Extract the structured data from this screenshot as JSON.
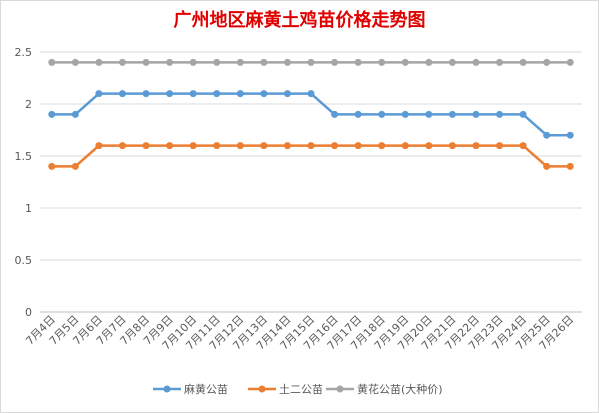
{
  "chart_data": {
    "type": "line",
    "title": "广州地区麻黄土鸡苗价格走势图",
    "xlabel": "",
    "ylabel": "",
    "ylim": [
      0,
      2.5
    ],
    "yticks": [
      "0",
      "0.5",
      "1",
      "1.5",
      "2",
      "2.5"
    ],
    "grid": true,
    "legend_position": "bottom",
    "categories": [
      "7月4日",
      "7月5日",
      "7月6日",
      "7月7日",
      "7月8日",
      "7月9日",
      "7月10日",
      "7月11日",
      "7月12日",
      "7月13日",
      "7月14日",
      "7月15日",
      "7月16日",
      "7月17日",
      "7月18日",
      "7月19日",
      "7月20日",
      "7月21日",
      "7月22日",
      "7月23日",
      "7月24日",
      "7月25日",
      "7月26日"
    ],
    "series": [
      {
        "name": "麻黄公苗",
        "color": "#5b9bd5",
        "values": [
          1.9,
          1.9,
          2.1,
          2.1,
          2.1,
          2.1,
          2.1,
          2.1,
          2.1,
          2.1,
          2.1,
          2.1,
          1.9,
          1.9,
          1.9,
          1.9,
          1.9,
          1.9,
          1.9,
          1.9,
          1.9,
          1.7,
          1.7
        ]
      },
      {
        "name": "土二公苗",
        "color": "#ed7d31",
        "values": [
          1.4,
          1.4,
          1.6,
          1.6,
          1.6,
          1.6,
          1.6,
          1.6,
          1.6,
          1.6,
          1.6,
          1.6,
          1.6,
          1.6,
          1.6,
          1.6,
          1.6,
          1.6,
          1.6,
          1.6,
          1.6,
          1.4,
          1.4
        ]
      },
      {
        "name": "黄花公苗(大种价)",
        "color": "#a5a5a5",
        "values": [
          2.4,
          2.4,
          2.4,
          2.4,
          2.4,
          2.4,
          2.4,
          2.4,
          2.4,
          2.4,
          2.4,
          2.4,
          2.4,
          2.4,
          2.4,
          2.4,
          2.4,
          2.4,
          2.4,
          2.4,
          2.4,
          2.4,
          2.4
        ]
      }
    ]
  }
}
